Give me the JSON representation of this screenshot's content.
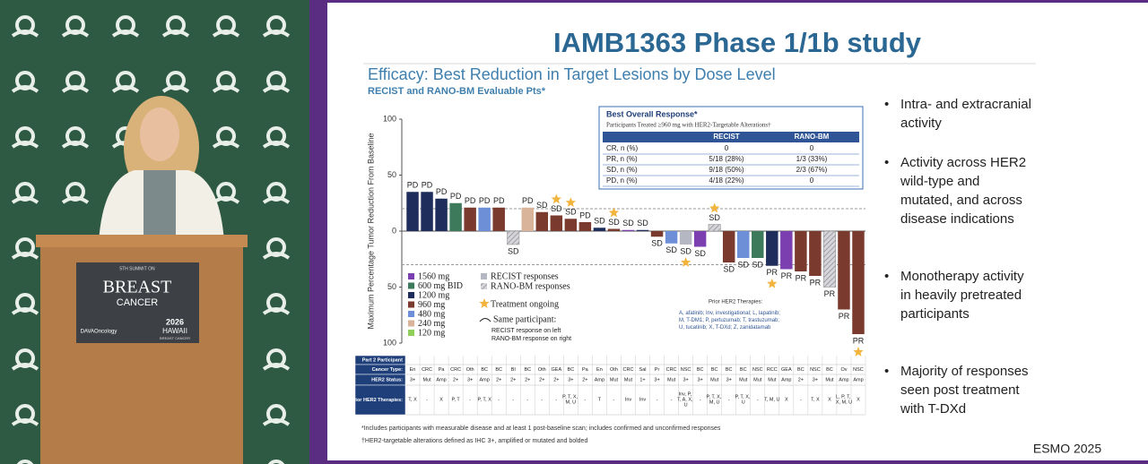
{
  "speaker_panel": {
    "sign": {
      "line1": "5TH SUMMIT ON",
      "title": "BREAST",
      "subtitle": "CANCER",
      "sponsor": "DAVAOncology",
      "year": "2026",
      "place": "HAWAII",
      "tag": "BREAST CANCER"
    }
  },
  "slide": {
    "title": "IAMB1363 Phase 1/1b study",
    "heading": "Efficacy: Best Reduction in Target Lesions by Dose Level",
    "subheading": "RECIST and RANO-BM Evaluable Pts*",
    "bullets": [
      "Intra- and extracranial activity",
      "Activity across HER2 wild-type and mutated, and across disease indications",
      "Monotherapy activity in heavily pretreated participants",
      "Majority of responses seen post treatment with T-DXd"
    ],
    "footer": "ESMO 2025",
    "footnotes": [
      "*Includes participants with measurable disease and at least 1 post-baseline scan; includes confirmed and unconfirmed responses",
      "†HER2-targetable alterations defined as IHC 3+, amplified or mutated and bolded"
    ],
    "response_table": {
      "title": "Best Overall Response*",
      "subtitle": "Participants Treated ≥960 mg with HER2-Targetable Alterations†",
      "columns": [
        "RECIST",
        "RANO-BM"
      ],
      "rows": [
        [
          "CR, n (%)",
          "0",
          "0"
        ],
        [
          "PR, n (%)",
          "5/18 (28%)",
          "1/3 (33%)"
        ],
        [
          "SD, n (%)",
          "9/18 (50%)",
          "2/3 (67%)"
        ],
        [
          "PD, n (%)",
          "4/18 (22%)",
          "0"
        ]
      ]
    },
    "prior_therapies": {
      "title": "Prior HER2 Therapies:",
      "text": "A, afatinib; Inv, investigational; L, lapatinib; M, T-DM1; P, pertuzumab; T, trastuzumab; U, tucatinib; X, T-DXd; Z, zanidatamab"
    },
    "participant_table": {
      "row_labels": [
        "Part 2 Participant",
        "Cancer Type:",
        "HER2 Status:",
        "Prior HER2 Therapies:"
      ],
      "cancer_type": [
        "En",
        "CRC",
        "Pa",
        "CRC",
        "Oth",
        "BC",
        "BC",
        "Bl",
        "BC",
        "Oth",
        "GEA",
        "BC",
        "Pa",
        "En",
        "Oth",
        "CRC",
        "Sal",
        "Pr",
        "CRC",
        "NSC",
        "BC",
        "BC",
        "BC",
        "BC",
        "NSC",
        "RCC",
        "GEA",
        "BC",
        "NSC",
        "BC",
        "Ov",
        "NSC"
      ],
      "her2_status": [
        "3+",
        "Mut",
        "Amp",
        "2+",
        "3+",
        "Amp",
        "2+",
        "2+",
        "2+",
        "2+",
        "2+",
        "3+",
        "2+",
        "Amp",
        "Mut",
        "Mut",
        "1+",
        "3+",
        "Mut",
        "3+",
        "3+",
        "Mut",
        "3+",
        "Mut",
        "Mut",
        "Mut",
        "Amp",
        "2+",
        "3+",
        "Mut",
        "Amp",
        "Amp"
      ],
      "prior": [
        "T, X",
        "-",
        "X",
        "P, T",
        "-",
        "P, T, X",
        "-",
        "-",
        "-",
        "-",
        "-",
        "P, T, X, M, U",
        "-",
        "T",
        "-",
        "Inv",
        "Inv",
        "-",
        "-",
        "Inv, P, T, A, X, U",
        "-",
        "P, T, X, M, U",
        "-",
        "P, T, X, U",
        "-",
        "T, M, U",
        "X",
        "-",
        "T, X",
        "X",
        "L, P, T, X, M, U",
        "X"
      ]
    }
  },
  "chart_data": {
    "type": "bar",
    "y_label": "Maximum Percentage Tumor Reduction From Baseline",
    "ylim": [
      -100,
      100
    ],
    "yticks": [
      {
        "value": -100,
        "label": "100"
      },
      {
        "value": -50,
        "label": "50"
      },
      0,
      50,
      100
    ],
    "thresholds": [
      20,
      -30
    ],
    "values": [
      35,
      35,
      29,
      25,
      21,
      21,
      21,
      -12,
      21,
      17,
      14,
      11,
      8,
      3,
      2,
      1,
      1,
      -5,
      -11,
      -12,
      -14,
      6,
      -28,
      -24,
      -24,
      -31,
      -34,
      -36,
      -40,
      -50,
      -70,
      -92
    ],
    "groups": [
      "1200 mg",
      "1200 mg",
      "1200 mg",
      "600 mg BID",
      "960 mg",
      "480 mg",
      "960 mg",
      "RANO-BM responses",
      "240 mg",
      "960 mg",
      "960 mg",
      "960 mg",
      "960 mg",
      "1200 mg",
      "960 mg",
      "1560 mg",
      "1200 mg",
      "960 mg",
      "480 mg",
      "RECIST responses",
      "1560 mg",
      "RANO-BM responses",
      "960 mg",
      "480 mg",
      "600 mg BID",
      "1200 mg",
      "1560 mg",
      "960 mg",
      "960 mg",
      "RANO-BM responses",
      "960 mg",
      "960 mg"
    ],
    "responses": [
      "PD",
      "PD",
      "PD",
      "PD",
      "PD",
      "PD",
      "PD",
      "SD",
      "PD",
      "SD",
      "SD",
      "SD",
      "PD",
      "SD",
      "SD",
      "SD",
      "SD",
      "SD",
      "SD",
      "SD",
      "SD",
      "SD",
      "SD",
      "SD",
      "SD",
      "PR",
      "PR",
      "PR",
      "PR",
      "PR",
      "PR",
      "PR"
    ],
    "ongoing": [
      false,
      false,
      false,
      false,
      false,
      false,
      false,
      false,
      false,
      false,
      true,
      true,
      false,
      false,
      true,
      false,
      false,
      false,
      false,
      true,
      false,
      true,
      false,
      false,
      false,
      true,
      false,
      false,
      false,
      false,
      false,
      true
    ],
    "legend": [
      {
        "name": "1560 mg",
        "color": "#7b3fb0"
      },
      {
        "name": "600 mg BID",
        "color": "#3d7a5c"
      },
      {
        "name": "1200 mg",
        "color": "#1f2d5c"
      },
      {
        "name": "960 mg",
        "color": "#7a3a2e"
      },
      {
        "name": "480 mg",
        "color": "#6d8fd8"
      },
      {
        "name": "240 mg",
        "color": "#d9b49a"
      },
      {
        "name": "120 mg",
        "color": "#8fcf5a"
      }
    ],
    "styles": [
      {
        "name": "RECIST responses",
        "color": "#b5b7c2"
      },
      {
        "name": "RANO-BM responses",
        "color": "#c9c9ce",
        "hatch": true
      }
    ],
    "ongoing_label": "Treatment ongoing",
    "same_label": "Same participant:",
    "same_notes": [
      "RECIST response on left",
      "RANO-BM response on right"
    ]
  }
}
